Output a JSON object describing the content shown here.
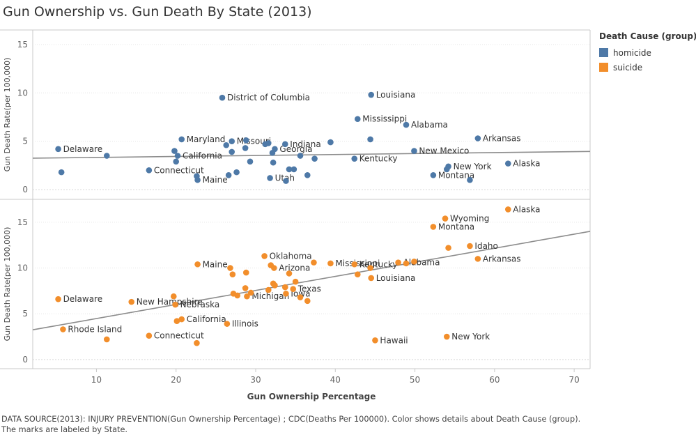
{
  "title": "Gun Ownership vs. Gun Death By State (2013)",
  "legend": {
    "title": "Death Cause (group)",
    "items": [
      {
        "label": "homicide",
        "color": "#4e79a7"
      },
      {
        "label": "suicide",
        "color": "#f28e2b"
      }
    ]
  },
  "footer": {
    "line1": "DATA SOURCE(2013): INJURY PREVENTION(Gun Ownership Percentage) ; CDC(Deaths Per 100000).  Color shows details about Death Cause (group).",
    "line2": "The marks are labeled by State."
  },
  "chart_data": {
    "type": "scatter",
    "x_label": "Gun Ownership Percentage",
    "x_range": [
      2,
      72
    ],
    "x_ticks": [
      "10",
      "20",
      "30",
      "40",
      "50",
      "60",
      "70"
    ],
    "panels": [
      {
        "name": "homicide",
        "color": "#4e79a7",
        "ylabel": "Gun Death Rate(per 100,000)",
        "y_range": [
          -1,
          16.5
        ],
        "y_ticks": [
          "0",
          "5",
          "10",
          "15"
        ],
        "trend": [
          [
            2,
            3.25
          ],
          [
            72,
            3.95
          ]
        ],
        "points": [
          {
            "x": 5.2,
            "y": 4.2,
            "label": "Delaware"
          },
          {
            "x": 5.6,
            "y": 1.8,
            "label": ""
          },
          {
            "x": 11.3,
            "y": 3.5,
            "label": ""
          },
          {
            "x": 16.6,
            "y": 2.0,
            "label": "Connecticut"
          },
          {
            "x": 19.8,
            "y": 4.0,
            "label": ""
          },
          {
            "x": 20.0,
            "y": 2.9,
            "label": ""
          },
          {
            "x": 20.2,
            "y": 3.5,
            "label": "California"
          },
          {
            "x": 20.7,
            "y": 5.2,
            "label": "Maryland"
          },
          {
            "x": 22.6,
            "y": 1.4,
            "label": ""
          },
          {
            "x": 22.7,
            "y": 1.0,
            "label": "Maine"
          },
          {
            "x": 25.8,
            "y": 9.5,
            "label": "District of Columbia"
          },
          {
            "x": 26.3,
            "y": 4.6,
            "label": ""
          },
          {
            "x": 26.6,
            "y": 1.5,
            "label": ""
          },
          {
            "x": 27.0,
            "y": 5.0,
            "label": "Missouri"
          },
          {
            "x": 27.0,
            "y": 3.9,
            "label": ""
          },
          {
            "x": 27.6,
            "y": 1.8,
            "label": ""
          },
          {
            "x": 28.7,
            "y": 4.3,
            "label": ""
          },
          {
            "x": 28.8,
            "y": 5.1,
            "label": ""
          },
          {
            "x": 29.3,
            "y": 2.9,
            "label": ""
          },
          {
            "x": 31.2,
            "y": 4.7,
            "label": ""
          },
          {
            "x": 31.6,
            "y": 4.8,
            "label": ""
          },
          {
            "x": 31.8,
            "y": 1.2,
            "label": "Utah"
          },
          {
            "x": 32.1,
            "y": 3.8,
            "label": ""
          },
          {
            "x": 32.2,
            "y": 2.8,
            "label": ""
          },
          {
            "x": 32.4,
            "y": 4.2,
            "label": "Georgia"
          },
          {
            "x": 33.7,
            "y": 4.7,
            "label": "Indiana"
          },
          {
            "x": 33.8,
            "y": 0.9,
            "label": ""
          },
          {
            "x": 34.2,
            "y": 2.1,
            "label": ""
          },
          {
            "x": 34.8,
            "y": 2.1,
            "label": ""
          },
          {
            "x": 35.6,
            "y": 3.5,
            "label": ""
          },
          {
            "x": 36.5,
            "y": 1.5,
            "label": ""
          },
          {
            "x": 37.4,
            "y": 3.2,
            "label": ""
          },
          {
            "x": 39.4,
            "y": 4.9,
            "label": ""
          },
          {
            "x": 42.4,
            "y": 3.2,
            "label": "Kentucky"
          },
          {
            "x": 42.8,
            "y": 7.3,
            "label": "Mississippi"
          },
          {
            "x": 44.4,
            "y": 5.2,
            "label": ""
          },
          {
            "x": 44.5,
            "y": 9.8,
            "label": "Louisiana"
          },
          {
            "x": 48.9,
            "y": 6.7,
            "label": "Alabama"
          },
          {
            "x": 49.9,
            "y": 4.0,
            "label": "New Mexico"
          },
          {
            "x": 52.3,
            "y": 1.5,
            "label": "Montana"
          },
          {
            "x": 54.0,
            "y": 2.1,
            "label": ""
          },
          {
            "x": 54.2,
            "y": 2.4,
            "label": "New York"
          },
          {
            "x": 56.9,
            "y": 1.0,
            "label": ""
          },
          {
            "x": 57.9,
            "y": 5.3,
            "label": "Arkansas"
          },
          {
            "x": 61.7,
            "y": 2.7,
            "label": "Alaska"
          }
        ]
      },
      {
        "name": "suicide",
        "color": "#f28e2b",
        "ylabel": "Gun Death Rate(per 100,000)",
        "y_range": [
          -1,
          17.5
        ],
        "y_ticks": [
          "0",
          "5",
          "10",
          "15"
        ],
        "trend": [
          [
            2,
            3.25
          ],
          [
            72,
            14.0
          ]
        ],
        "points": [
          {
            "x": 5.2,
            "y": 6.6,
            "label": "Delaware"
          },
          {
            "x": 5.8,
            "y": 3.3,
            "label": "Rhode Island"
          },
          {
            "x": 11.3,
            "y": 2.2,
            "label": ""
          },
          {
            "x": 14.4,
            "y": 6.3,
            "label": "New Hampshire"
          },
          {
            "x": 16.6,
            "y": 2.6,
            "label": "Connecticut"
          },
          {
            "x": 19.7,
            "y": 6.9,
            "label": ""
          },
          {
            "x": 19.9,
            "y": 6.0,
            "label": "Nebraska"
          },
          {
            "x": 20.1,
            "y": 4.2,
            "label": ""
          },
          {
            "x": 20.7,
            "y": 4.4,
            "label": "California"
          },
          {
            "x": 22.6,
            "y": 1.8,
            "label": ""
          },
          {
            "x": 22.7,
            "y": 10.4,
            "label": "Maine"
          },
          {
            "x": 26.4,
            "y": 3.9,
            "label": "Illinois"
          },
          {
            "x": 26.8,
            "y": 10.0,
            "label": ""
          },
          {
            "x": 27.1,
            "y": 9.3,
            "label": ""
          },
          {
            "x": 27.2,
            "y": 7.2,
            "label": ""
          },
          {
            "x": 27.7,
            "y": 7.0,
            "label": ""
          },
          {
            "x": 28.7,
            "y": 7.8,
            "label": ""
          },
          {
            "x": 28.8,
            "y": 9.5,
            "label": ""
          },
          {
            "x": 28.9,
            "y": 6.9,
            "label": "Michigan"
          },
          {
            "x": 29.4,
            "y": 7.3,
            "label": ""
          },
          {
            "x": 31.1,
            "y": 11.3,
            "label": "Oklahoma"
          },
          {
            "x": 31.6,
            "y": 7.6,
            "label": ""
          },
          {
            "x": 31.9,
            "y": 10.3,
            "label": ""
          },
          {
            "x": 32.2,
            "y": 8.3,
            "label": ""
          },
          {
            "x": 32.3,
            "y": 10.0,
            "label": "Arizona"
          },
          {
            "x": 32.4,
            "y": 8.1,
            "label": ""
          },
          {
            "x": 33.7,
            "y": 7.9,
            "label": ""
          },
          {
            "x": 33.8,
            "y": 7.2,
            "label": "Iowa"
          },
          {
            "x": 34.2,
            "y": 9.4,
            "label": ""
          },
          {
            "x": 34.7,
            "y": 7.7,
            "label": "Texas"
          },
          {
            "x": 35.0,
            "y": 8.5,
            "label": ""
          },
          {
            "x": 35.6,
            "y": 6.8,
            "label": ""
          },
          {
            "x": 36.5,
            "y": 6.4,
            "label": ""
          },
          {
            "x": 37.3,
            "y": 10.6,
            "label": ""
          },
          {
            "x": 39.4,
            "y": 10.5,
            "label": "Mississippi"
          },
          {
            "x": 42.4,
            "y": 10.4,
            "label": "Kentucky"
          },
          {
            "x": 42.8,
            "y": 9.3,
            "label": ""
          },
          {
            "x": 44.4,
            "y": 10.0,
            "label": ""
          },
          {
            "x": 44.5,
            "y": 8.9,
            "label": "Louisiana"
          },
          {
            "x": 45.0,
            "y": 2.1,
            "label": "Hawaii"
          },
          {
            "x": 47.9,
            "y": 10.6,
            "label": "Alabama"
          },
          {
            "x": 48.9,
            "y": 10.5,
            "label": ""
          },
          {
            "x": 49.9,
            "y": 10.7,
            "label": ""
          },
          {
            "x": 52.3,
            "y": 14.5,
            "label": "Montana"
          },
          {
            "x": 53.8,
            "y": 15.4,
            "label": "Wyoming"
          },
          {
            "x": 54.0,
            "y": 2.5,
            "label": "New York"
          },
          {
            "x": 54.2,
            "y": 12.2,
            "label": ""
          },
          {
            "x": 56.9,
            "y": 12.4,
            "label": "Idaho"
          },
          {
            "x": 57.9,
            "y": 11.0,
            "label": "Arkansas"
          },
          {
            "x": 61.7,
            "y": 16.4,
            "label": "Alaska"
          }
        ]
      }
    ]
  }
}
